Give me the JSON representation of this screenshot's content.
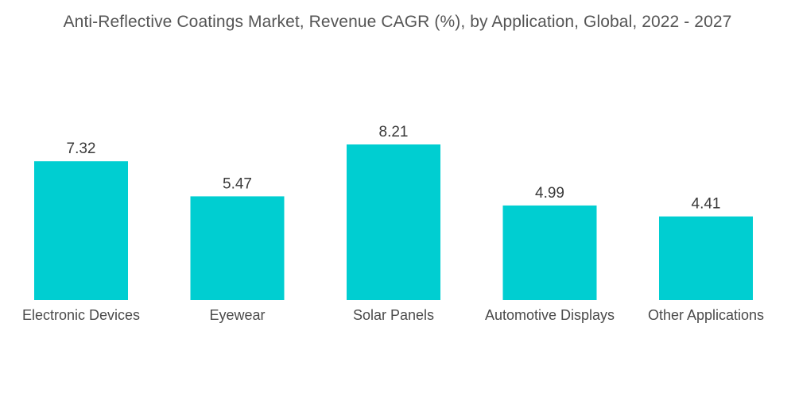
{
  "chart_data": {
    "type": "bar",
    "title": "Anti-Reflective Coatings Market, Revenue CAGR (%), by Application, Global, 2022 - 2027",
    "xlabel": "",
    "ylabel": "",
    "categories": [
      "Electronic Devices",
      "Eyewear",
      "Solar Panels",
      "Automotive Displays",
      "Other Applications"
    ],
    "values": [
      7.32,
      5.47,
      8.21,
      4.99,
      4.41
    ],
    "value_labels": [
      "7.32",
      "5.47",
      "8.21",
      "4.99",
      "4.41"
    ],
    "ylim": [
      0,
      8.21
    ],
    "grid": false,
    "legend": "none",
    "bar_color": "#00CED1"
  }
}
